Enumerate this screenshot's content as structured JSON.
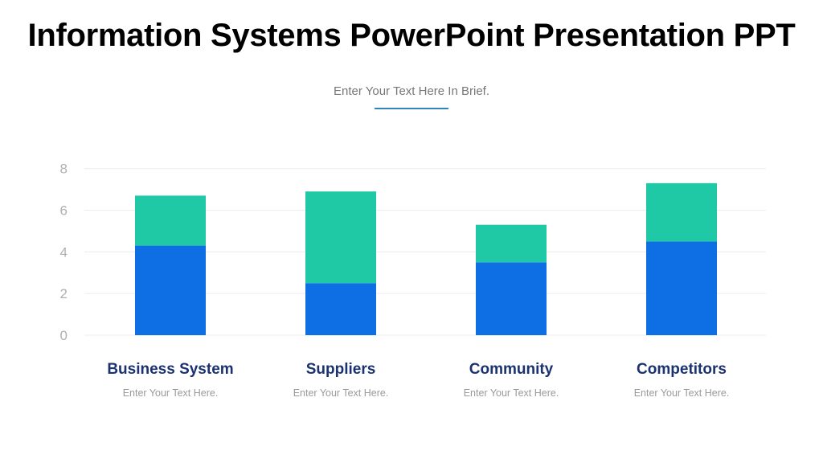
{
  "title": "Information Systems PowerPoint Presentation PPT",
  "subtitle": "Enter Your Text Here In Brief.",
  "colors": {
    "series1": "#0e6ee4",
    "series2": "#20c9a5",
    "grid": "#ececec",
    "category_label": "#1b3270"
  },
  "chart_data": {
    "type": "bar",
    "stacked": true,
    "categories": [
      "Business System",
      "Suppliers",
      "Community",
      "Competitors"
    ],
    "category_descriptions": [
      "Enter Your Text Here.",
      "Enter Your Text Here.",
      "Enter Your Text Here.",
      "Enter Your Text Here."
    ],
    "series": [
      {
        "values": [
          4.3,
          2.5,
          3.5,
          4.5
        ]
      },
      {
        "values": [
          2.4,
          4.4,
          1.8,
          2.8
        ]
      }
    ],
    "ylim": [
      0,
      8
    ],
    "yticks": [
      "0",
      "2",
      "4",
      "6",
      "8"
    ],
    "grid": true,
    "legend": "none"
  }
}
